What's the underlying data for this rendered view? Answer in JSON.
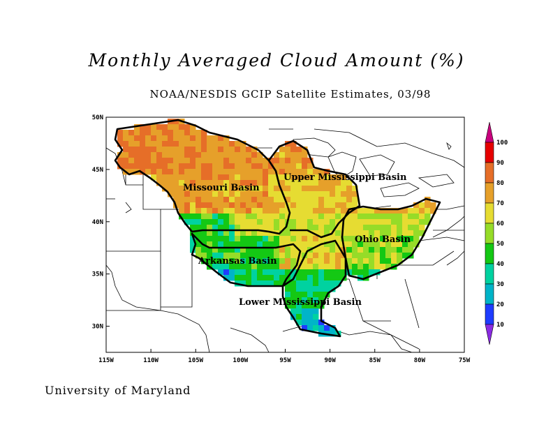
{
  "title": "Monthly Averaged Cloud Amount (%)",
  "subtitle": "NOAA/NESDIS GCIP Satellite Estimates, 03/98",
  "credit": "University of Maryland",
  "chart_data": {
    "type": "heatmap",
    "x_ticks": [
      "115W",
      "110W",
      "105W",
      "100W",
      "95W",
      "90W",
      "85W",
      "80W",
      "75W"
    ],
    "y_ticks": [
      "50N",
      "45N",
      "40N",
      "35N",
      "30N"
    ],
    "lon_range": [
      -115,
      -75
    ],
    "lat_range": [
      27.5,
      50
    ],
    "colorbar": {
      "labels": [
        "10",
        "20",
        "30",
        "40",
        "50",
        "60",
        "70",
        "80",
        "90",
        "100"
      ],
      "colors": [
        "#8a2be2",
        "#1e3cff",
        "#00b4c8",
        "#00d2a0",
        "#14c814",
        "#96dc28",
        "#e6dc32",
        "#e6a02a",
        "#e66e28",
        "#e60000",
        "#c8007d"
      ]
    },
    "regions": [
      {
        "name": "Missouri Basin",
        "label": "Missouri Basin"
      },
      {
        "name": "Upper Mississippi Basin",
        "label": "Upper Mississippi Basin"
      },
      {
        "name": "Ohio Basin",
        "label": "Ohio Basin"
      },
      {
        "name": "Arkansas Basin",
        "label": "Arkansas Basin"
      },
      {
        "name": "Lower Mississippi Basin",
        "label": "Lower Mississippi Basin"
      }
    ]
  }
}
